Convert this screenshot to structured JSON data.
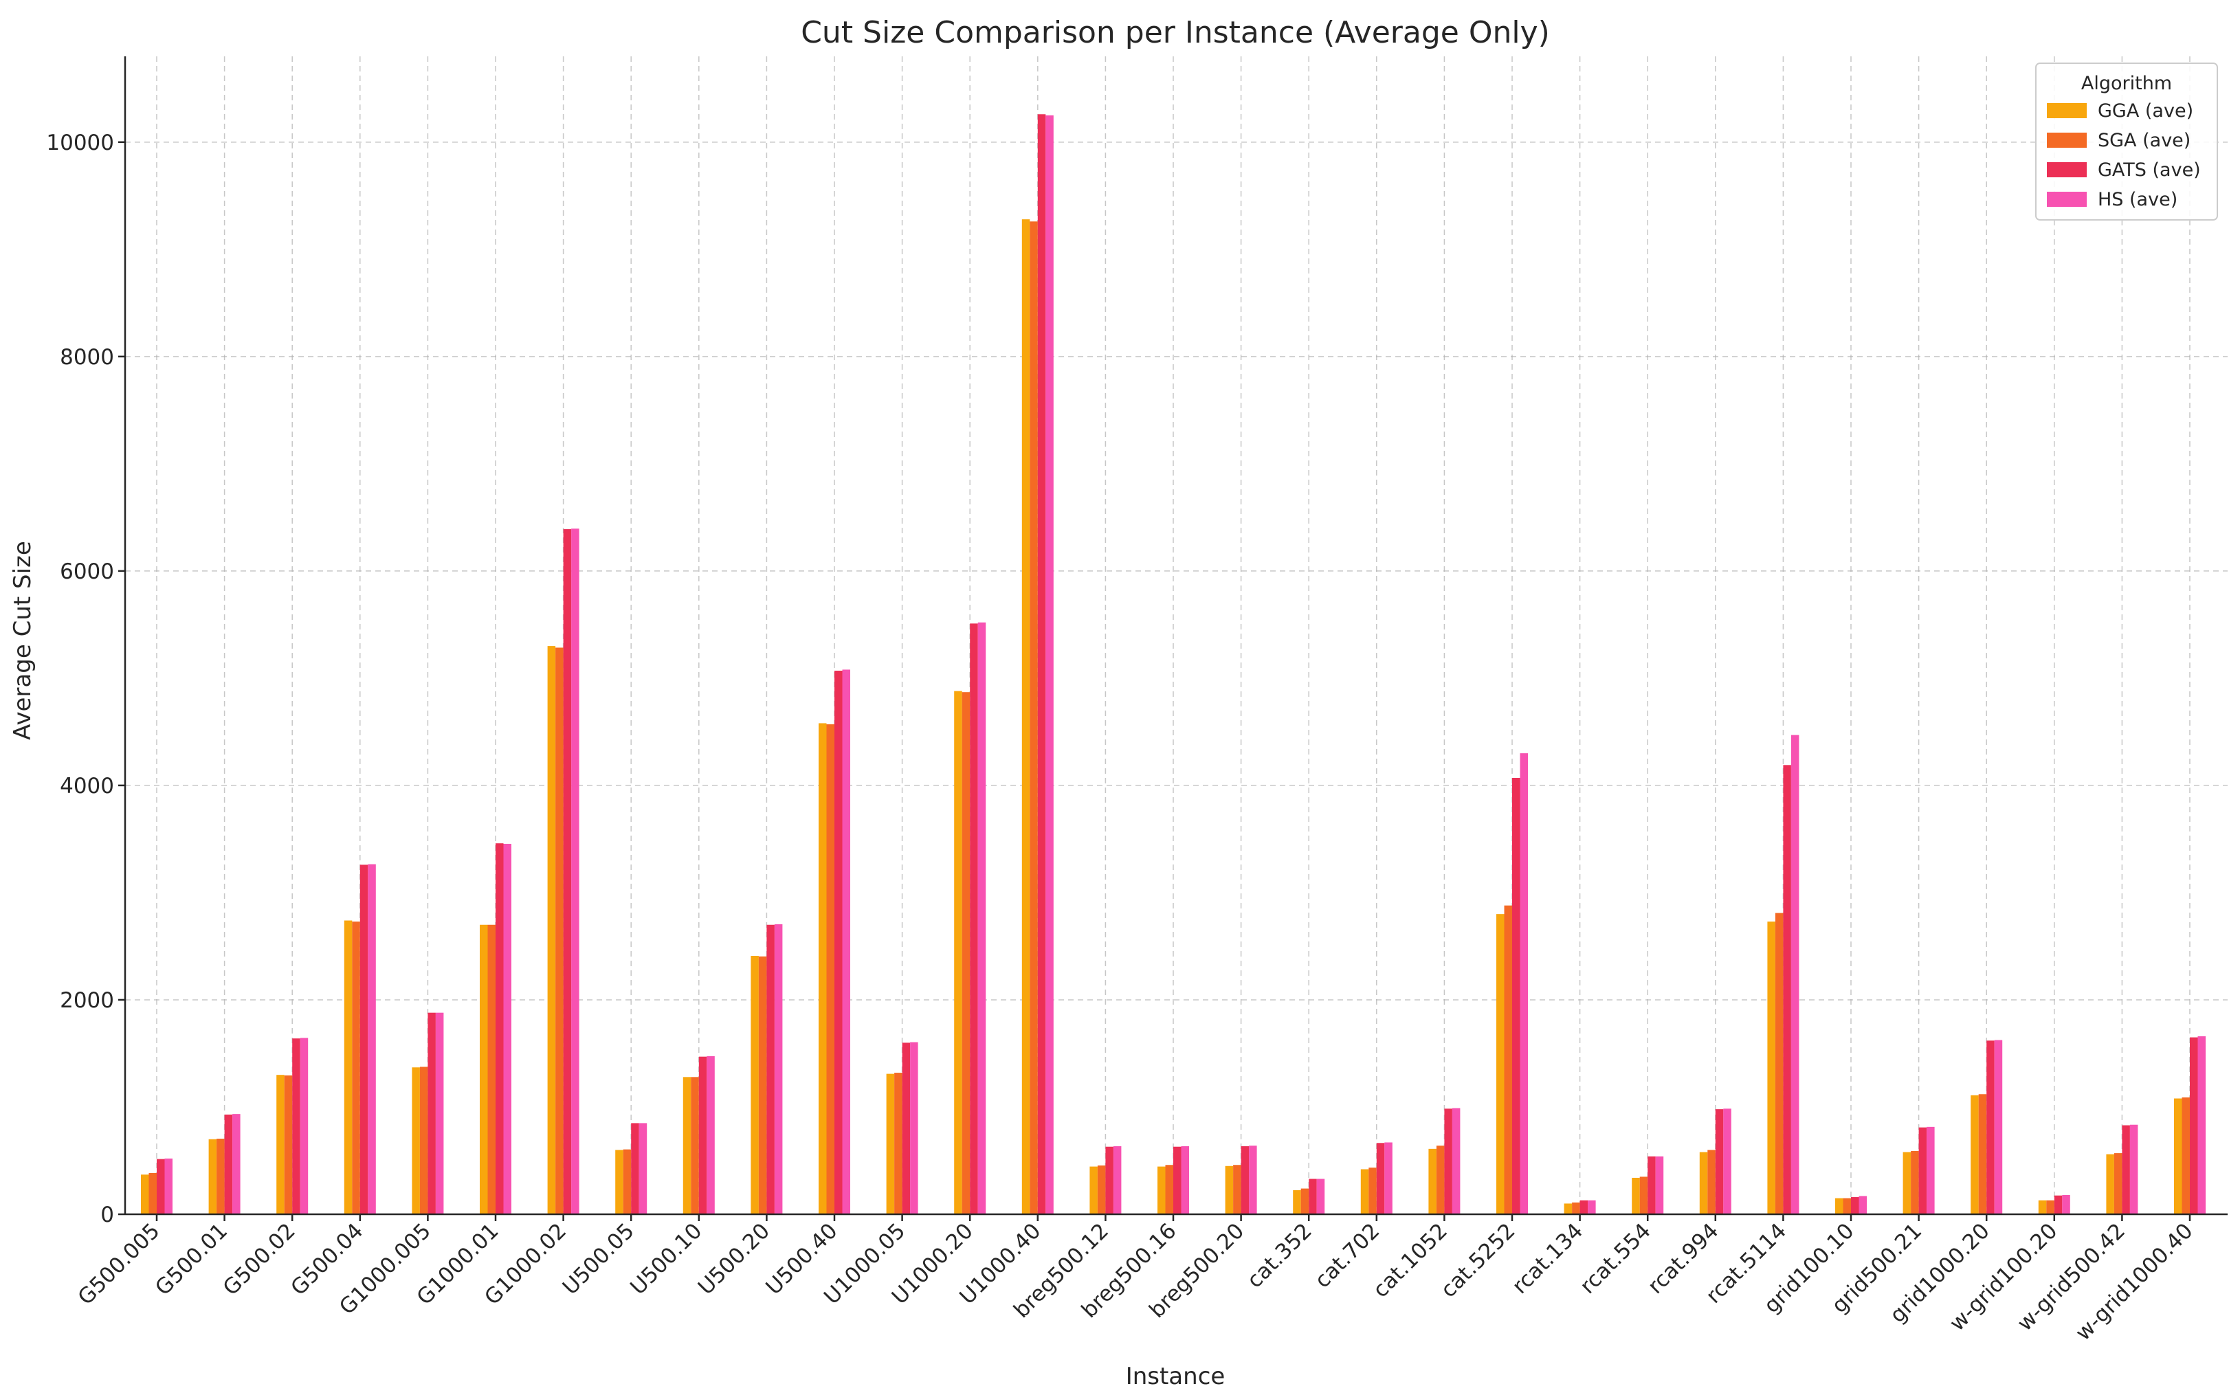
{
  "chart_data": {
    "type": "bar",
    "title": "Cut Size Comparison per Instance (Average Only)",
    "xlabel": "Instance",
    "ylabel": "Average Cut Size",
    "ylim": [
      0,
      10800
    ],
    "yticks": [
      0,
      2000,
      4000,
      6000,
      8000,
      10000
    ],
    "grid": true,
    "legend": {
      "title": "Algorithm",
      "placement": "top-right"
    },
    "categories": [
      "G500.005",
      "G500.01",
      "G500.02",
      "G500.04",
      "G1000.005",
      "G1000.01",
      "G1000.02",
      "U500.05",
      "U500.10",
      "U500.20",
      "U500.40",
      "U1000.05",
      "U1000.20",
      "U1000.40",
      "breg500.12",
      "breg500.16",
      "breg500.20",
      "cat.352",
      "cat.702",
      "cat.1052",
      "cat.5252",
      "rcat.134",
      "rcat.554",
      "rcat.994",
      "rcat.5114",
      "grid100.10",
      "grid500.21",
      "grid1000.20",
      "w-grid100.20",
      "w-grid500.42",
      "w-grid1000.40"
    ],
    "series": [
      {
        "name": "GGA (ave)",
        "color": "#f8a60d",
        "values": [
          370,
          700,
          1300,
          2740,
          1370,
          2700,
          5300,
          600,
          1280,
          2410,
          4580,
          1310,
          4880,
          9280,
          445,
          445,
          450,
          225,
          420,
          610,
          2800,
          100,
          340,
          580,
          2730,
          150,
          580,
          1110,
          130,
          560,
          1080
        ]
      },
      {
        "name": "SGA (ave)",
        "color": "#f46a24",
        "values": [
          385,
          705,
          1295,
          2730,
          1375,
          2700,
          5285,
          605,
          1280,
          2405,
          4570,
          1320,
          4870,
          9260,
          455,
          460,
          460,
          240,
          435,
          640,
          2880,
          110,
          350,
          600,
          2810,
          150,
          590,
          1120,
          130,
          570,
          1090
        ]
      },
      {
        "name": "GATS (ave)",
        "color": "#ec2f55",
        "values": [
          515,
          930,
          1640,
          3260,
          1880,
          3460,
          6390,
          850,
          1470,
          2700,
          5070,
          1600,
          5510,
          10260,
          630,
          630,
          635,
          330,
          665,
          985,
          4070,
          130,
          540,
          980,
          4190,
          160,
          810,
          1620,
          175,
          830,
          1650
        ]
      },
      {
        "name": "HS (ave)",
        "color": "#f752b1",
        "values": [
          520,
          935,
          1645,
          3265,
          1880,
          3455,
          6395,
          850,
          1475,
          2705,
          5080,
          1605,
          5520,
          10250,
          635,
          635,
          640,
          330,
          670,
          990,
          4300,
          130,
          540,
          985,
          4470,
          170,
          815,
          1625,
          180,
          835,
          1660
        ]
      }
    ]
  }
}
